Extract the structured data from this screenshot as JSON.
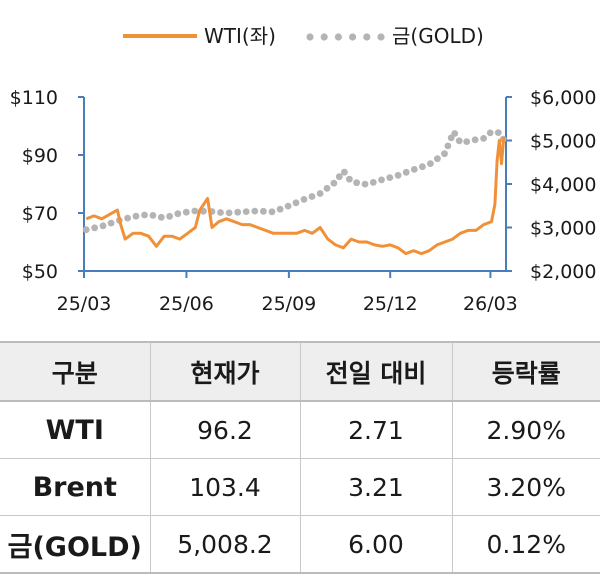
{
  "chart_data": {
    "type": "line",
    "legend": {
      "position": "top",
      "items": [
        "WTI(좌)",
        "금(GOLD)"
      ]
    },
    "x_ticks": [
      "25/03",
      "25/06",
      "25/09",
      "25/12",
      "26/03"
    ],
    "left_axis": {
      "ticks": [
        "$110",
        "$90",
        "$70",
        "$50"
      ],
      "ylim": [
        50,
        110
      ]
    },
    "right_axis": {
      "ticks": [
        "$6,000",
        "$5,000",
        "$4,000",
        "$3,000",
        "$2,000"
      ],
      "ylim": [
        2000,
        6000
      ]
    },
    "grid": false,
    "series": [
      {
        "name": "WTI(좌)",
        "axis": "left",
        "color": "#F0913A",
        "style": "solid",
        "x": [
          "2025-03-03",
          "2025-03-10",
          "2025-03-17",
          "2025-03-24",
          "2025-03-31",
          "2025-04-03",
          "2025-04-07",
          "2025-04-14",
          "2025-04-21",
          "2025-04-28",
          "2025-05-05",
          "2025-05-12",
          "2025-05-19",
          "2025-05-26",
          "2025-06-02",
          "2025-06-09",
          "2025-06-13",
          "2025-06-20",
          "2025-06-24",
          "2025-06-30",
          "2025-07-07",
          "2025-07-14",
          "2025-07-21",
          "2025-07-28",
          "2025-08-04",
          "2025-08-11",
          "2025-08-18",
          "2025-08-25",
          "2025-09-01",
          "2025-09-08",
          "2025-09-15",
          "2025-09-22",
          "2025-09-29",
          "2025-10-06",
          "2025-10-13",
          "2025-10-20",
          "2025-10-27",
          "2025-11-03",
          "2025-11-10",
          "2025-11-17",
          "2025-11-24",
          "2025-12-01",
          "2025-12-08",
          "2025-12-15",
          "2025-12-22",
          "2025-12-29",
          "2026-01-05",
          "2026-01-12",
          "2026-01-19",
          "2026-01-26",
          "2026-02-02",
          "2026-02-09",
          "2026-02-16",
          "2026-02-23",
          "2026-03-02",
          "2026-03-05",
          "2026-03-07",
          "2026-03-09",
          "2026-03-11",
          "2026-03-13"
        ],
        "values": [
          68,
          69,
          68,
          69.5,
          71,
          66,
          61,
          63,
          63,
          62,
          58.5,
          62,
          62,
          61,
          63,
          65,
          71,
          75,
          65,
          67,
          68,
          67,
          66,
          66,
          65,
          64,
          63,
          63,
          63,
          63,
          64,
          63,
          65,
          61,
          59,
          58,
          61,
          60,
          60,
          59,
          58.5,
          59,
          58,
          56,
          57,
          56,
          57,
          59,
          60,
          61,
          63,
          64,
          64,
          66,
          67,
          73,
          88,
          95,
          87,
          96.2
        ]
      },
      {
        "name": "금(GOLD)",
        "axis": "right",
        "color": "#B4B4B4",
        "style": "dotted",
        "x": [
          "2025-03-03",
          "2025-03-17",
          "2025-03-31",
          "2025-04-14",
          "2025-04-28",
          "2025-05-12",
          "2025-05-26",
          "2025-06-09",
          "2025-06-23",
          "2025-07-07",
          "2025-07-21",
          "2025-08-04",
          "2025-08-18",
          "2025-09-01",
          "2025-09-15",
          "2025-09-29",
          "2025-10-13",
          "2025-10-20",
          "2025-10-27",
          "2025-11-10",
          "2025-11-24",
          "2025-12-08",
          "2025-12-22",
          "2026-01-05",
          "2026-01-19",
          "2026-01-27",
          "2026-02-02",
          "2026-02-09",
          "2026-02-16",
          "2026-02-23",
          "2026-03-02",
          "2026-03-09",
          "2026-03-13"
        ],
        "values": [
          2950,
          3030,
          3150,
          3250,
          3300,
          3220,
          3330,
          3380,
          3370,
          3330,
          3360,
          3380,
          3360,
          3500,
          3650,
          3780,
          4050,
          4300,
          4050,
          3990,
          4100,
          4200,
          4330,
          4450,
          4700,
          5200,
          4950,
          4980,
          5020,
          5050,
          5200,
          5180,
          5008.2
        ]
      }
    ]
  },
  "table": {
    "headers": [
      "구분",
      "현재가",
      "전일 대비",
      "등락률"
    ],
    "rows": [
      [
        "WTI",
        "96.2",
        "2.71",
        "2.90%"
      ],
      [
        "Brent",
        "103.4",
        "3.21",
        "3.20%"
      ],
      [
        "금(GOLD)",
        "5,008.2",
        "6.00",
        "0.12%"
      ]
    ]
  },
  "colors": {
    "wti": "#F0913A",
    "gold": "#B4B4B4",
    "axis": "#4A7EBB",
    "header_bg": "#EEEEEE"
  }
}
